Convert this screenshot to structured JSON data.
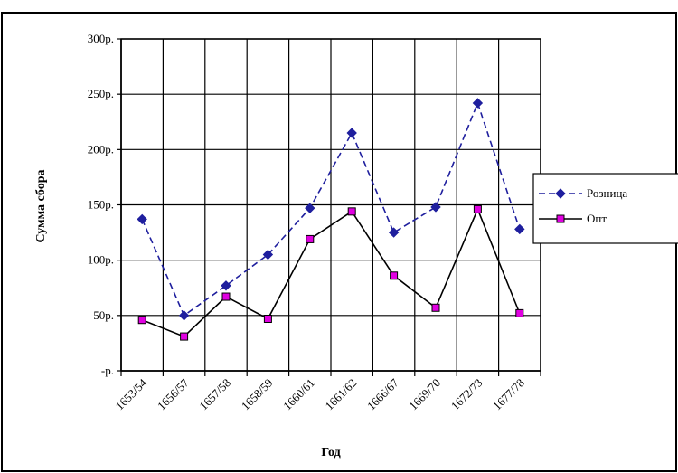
{
  "chart_data": {
    "type": "line",
    "title": "",
    "xlabel": "Год",
    "ylabel": "Сумма сбора",
    "categories": [
      "1653/54",
      "1656/57",
      "1657/58",
      "1658/59",
      "1660/61",
      "1661/62",
      "1666/67",
      "1669/70",
      "1672/73",
      "1677/78"
    ],
    "y_tick_labels": [
      "-р.",
      "50р.",
      "100р.",
      "150р.",
      "200р.",
      "250р.",
      "300р."
    ],
    "ylim": [
      0,
      300
    ],
    "grid": true,
    "legend_position": "right",
    "series": [
      {
        "name": "Розница",
        "values": [
          137,
          50,
          77,
          105,
          147,
          215,
          125,
          148,
          242,
          128
        ],
        "color": "#1f1f9e",
        "line_style": "dashed",
        "marker": "diamond"
      },
      {
        "name": "Опт",
        "values": [
          46,
          31,
          67,
          47,
          119,
          144,
          86,
          57,
          146,
          52
        ],
        "color": "#000000",
        "line_style": "solid",
        "marker": "square",
        "marker_color": "#e000e0"
      }
    ]
  }
}
